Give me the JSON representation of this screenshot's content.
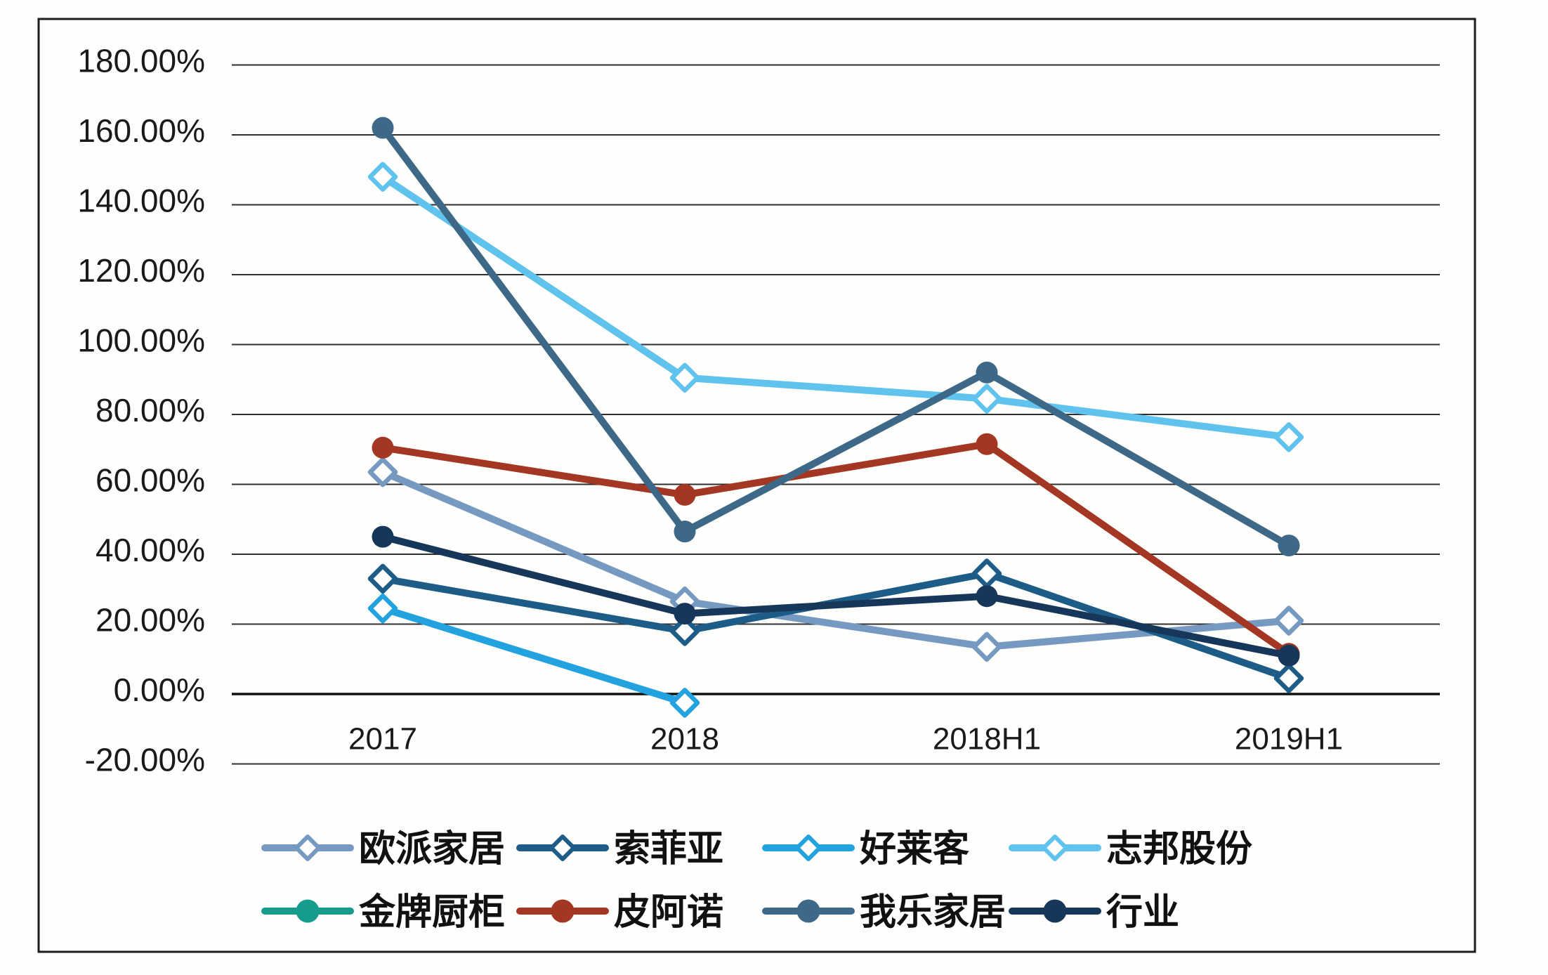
{
  "chart_data": {
    "type": "line",
    "title": "",
    "categories": [
      "2017",
      "2018",
      "2018H1",
      "2019H1"
    ],
    "y_axis": {
      "min": -20,
      "max": 180,
      "step": 20,
      "unit": "%",
      "tick_labels": [
        "180.00%",
        "160.00%",
        "140.00%",
        "120.00%",
        "100.00%",
        "80.00%",
        "60.00%",
        "40.00%",
        "20.00%",
        "0.00%",
        "-20.00%"
      ]
    },
    "grid": true,
    "legend_position": "bottom",
    "series": [
      {
        "id": "oupai-jiaju",
        "name": "欧派家居",
        "color": "#7599c0",
        "marker": "open-diamond",
        "values": [
          63.5,
          26.5,
          13.5,
          21
        ]
      },
      {
        "id": "suofeiya",
        "name": "索菲亚",
        "color": "#1d5c87",
        "marker": "open-diamond",
        "values": [
          33,
          18,
          34.5,
          4.5
        ]
      },
      {
        "id": "haolaike",
        "name": "好莱客",
        "color": "#22a3e0",
        "marker": "open-diamond",
        "values": [
          24.5,
          -2.5,
          null,
          null
        ]
      },
      {
        "id": "zhibang-gufen",
        "name": "志邦股份",
        "color": "#5fc3ee",
        "marker": "open-diamond",
        "values": [
          148,
          90.5,
          84.5,
          73.5
        ]
      },
      {
        "id": "jinpai-chugui",
        "name": "金牌厨柜",
        "color": "#169c8c",
        "marker": "filled-circle",
        "values": [
          null,
          null,
          null,
          null
        ]
      },
      {
        "id": "pianuo",
        "name": "皮阿诺",
        "color": "#a43723",
        "marker": "filled-circle",
        "values": [
          70.5,
          57,
          71.5,
          11.5
        ]
      },
      {
        "id": "wole-jiaju",
        "name": "我乐家居",
        "color": "#3d6887",
        "marker": "filled-circle",
        "values": [
          162,
          46.5,
          92,
          42.5
        ]
      },
      {
        "id": "hangye",
        "name": "行业",
        "color": "#16375a",
        "marker": "filled-circle",
        "values": [
          45,
          23,
          28,
          11
        ]
      }
    ],
    "legend_rows": [
      [
        "欧派家居",
        "索菲亚",
        "好莱客",
        "志邦股份"
      ],
      [
        "金牌厨柜",
        "皮阿诺",
        "我乐家居",
        "行业"
      ]
    ],
    "colors": {
      "gridline": "#2e2e2e",
      "zero_line": "#101010",
      "frame": "#1c1c1c",
      "text": "#1a1a1a"
    }
  }
}
